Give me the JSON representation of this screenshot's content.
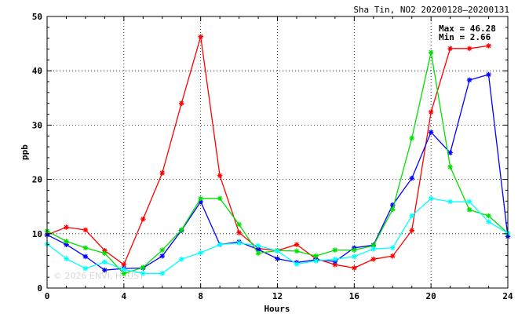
{
  "chart_data": {
    "type": "line",
    "title": "Sha Tin, NO2 20200128–20200131",
    "xlabel": "Hours",
    "ylabel": "ppb",
    "xlim": [
      0,
      24
    ],
    "ylim": [
      0,
      50
    ],
    "xticks": [
      0,
      4,
      8,
      12,
      16,
      20,
      24
    ],
    "yticks": [
      0,
      10,
      20,
      30,
      40,
      50
    ],
    "grid": true,
    "annotation": {
      "max_label": "Max = 46.28",
      "min_label": "Min =  2.66"
    },
    "watermark": "© 2026  ENVI, HKUST",
    "series": [
      {
        "color": "#ff0000",
        "x": [
          0,
          1,
          2,
          3,
          4,
          5,
          6,
          7,
          8,
          9,
          10,
          11,
          12,
          13,
          14,
          15,
          16,
          17,
          18,
          19,
          20,
          21,
          22,
          23,
          24
        ],
        "values": [
          9.8,
          11.2,
          10.7,
          6.9,
          4.3,
          12.7,
          21.2,
          34.0,
          46.28,
          20.7,
          10.2,
          7.3,
          6.9,
          8.0,
          5.4,
          4.3,
          3.7,
          5.3,
          5.9,
          10.6,
          32.4,
          44.1,
          44.1,
          44.6,
          null
        ]
      },
      {
        "color": "#0000ff",
        "x": [
          0,
          1,
          2,
          3,
          4,
          5,
          6,
          7,
          8,
          9,
          10,
          11,
          12,
          13,
          14,
          15,
          16,
          17,
          18,
          19,
          20,
          21,
          22,
          23,
          24
        ],
        "values": [
          9.8,
          8.0,
          5.8,
          3.3,
          3.6,
          3.7,
          5.9,
          10.6,
          15.9,
          8.0,
          8.5,
          7.1,
          5.4,
          4.7,
          5.2,
          4.9,
          7.4,
          7.9,
          15.3,
          20.2,
          28.7,
          24.9,
          38.3,
          39.3,
          9.5
        ]
      },
      {
        "color": "#00e000",
        "x": [
          0,
          1,
          2,
          3,
          4,
          5,
          6,
          7,
          8,
          9,
          10,
          11,
          12,
          13,
          14,
          15,
          16,
          17,
          18,
          19,
          20,
          21,
          22,
          23,
          24
        ],
        "values": [
          10.5,
          8.6,
          7.4,
          6.4,
          2.66,
          3.8,
          7.0,
          10.7,
          16.5,
          16.5,
          11.7,
          6.4,
          6.9,
          6.8,
          5.9,
          7.0,
          7.0,
          7.8,
          14.5,
          27.6,
          43.4,
          22.3,
          14.4,
          13.3,
          10.1
        ]
      },
      {
        "color": "#00ffff",
        "x": [
          0,
          1,
          2,
          3,
          4,
          5,
          6,
          7,
          8,
          9,
          10,
          11,
          12,
          13,
          14,
          15,
          16,
          17,
          18,
          19,
          20,
          21,
          22,
          23,
          24
        ],
        "values": [
          8.1,
          5.4,
          3.6,
          4.8,
          3.4,
          2.7,
          2.7,
          5.3,
          6.5,
          8.0,
          8.3,
          7.8,
          6.8,
          4.4,
          5.0,
          5.3,
          5.8,
          7.2,
          7.4,
          13.3,
          16.5,
          15.9,
          15.9,
          12.2,
          10.1
        ]
      }
    ]
  }
}
